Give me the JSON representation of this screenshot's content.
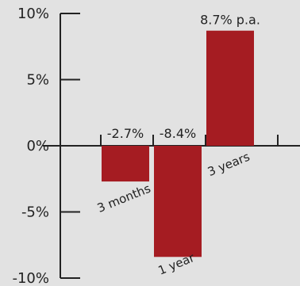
{
  "chart_data": {
    "type": "bar",
    "title": "",
    "xlabel": "",
    "ylabel": "",
    "categories": [
      "3 months",
      "1 year",
      "3 years"
    ],
    "values": [
      -2.7,
      -8.4,
      8.7
    ],
    "data_labels": [
      "-2.7%",
      "-8.4%",
      "8.7% p.a."
    ],
    "ylim": [
      -10,
      10
    ],
    "y_ticks": [
      10,
      5,
      0,
      -5,
      -10
    ],
    "y_tick_labels": [
      "10%",
      "5%",
      "0%",
      "-5%",
      "-10%"
    ],
    "grid": false,
    "legend": "none",
    "colors": {
      "bar": "#a51c22",
      "axis": "#222222",
      "background": "#e2e2e2"
    }
  }
}
